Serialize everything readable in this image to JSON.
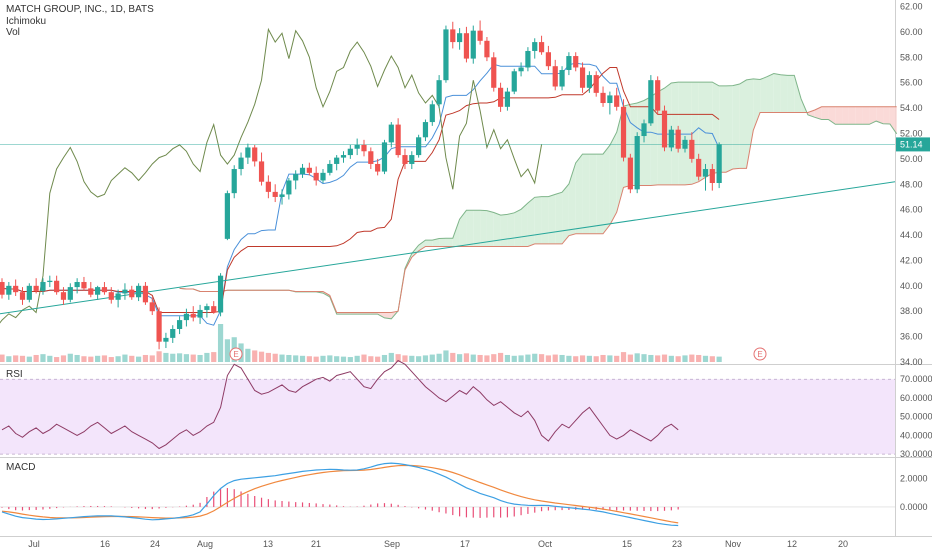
{
  "header": {
    "title": "MATCH GROUP, INC., 1D, BATS",
    "indicators": [
      "Ichimoku",
      "Vol"
    ]
  },
  "price_axis": {
    "ticks": [
      "62.00",
      "60.00",
      "58.00",
      "56.00",
      "54.00",
      "52.00",
      "50.00",
      "48.00",
      "46.00",
      "44.00",
      "42.00",
      "40.00",
      "38.00",
      "36.00",
      "34.00"
    ],
    "current_price_label": "51.14",
    "ylim": [
      34,
      62.2
    ]
  },
  "rsi": {
    "label": "RSI",
    "ticks": [
      "70.0000",
      "60.0000",
      "50.0000",
      "40.0000",
      "30.0000"
    ],
    "ylim": [
      29,
      76
    ],
    "band": [
      30,
      70
    ]
  },
  "macd": {
    "label": "MACD",
    "ticks": [
      "2.0000",
      "0.0000"
    ],
    "ylim": [
      -1.9,
      3.3
    ]
  },
  "x_axis": {
    "ticks": [
      "Jul",
      "16",
      "24",
      "Aug",
      "13",
      "21",
      "Sep",
      "17",
      "Oct",
      "15",
      "23",
      "Nov",
      "12",
      "20"
    ]
  },
  "earnings_markers": [
    "E",
    "E"
  ],
  "colors": {
    "up": "#26a69a",
    "down": "#ef5350",
    "cloud_bull": "#d4edd8",
    "cloud_bear": "#f9d4d1",
    "rsi_bg": "#f3e5fb",
    "price_line": "#26a69a",
    "tenkan": "#4a90d9",
    "kijun": "#c0392b",
    "chikou": "#6f8a4d",
    "rsi_line": "#8e3b65",
    "macd_line": "#3da0e3",
    "signal_line": "#f0883e",
    "histogram": "#e94e77"
  },
  "chart_data": [
    {
      "type": "candlestick",
      "title": "MATCH GROUP, INC., 1D, BATS",
      "ylim": [
        34,
        62.2
      ],
      "last_price": 51.14,
      "ohlc": [
        [
          40.3,
          40.6,
          39.0,
          39.3
        ],
        [
          39.3,
          40.3,
          38.9,
          40.0
        ],
        [
          40.0,
          40.5,
          39.2,
          39.5
        ],
        [
          39.5,
          39.9,
          38.5,
          38.9
        ],
        [
          38.9,
          40.2,
          38.7,
          40.0
        ],
        [
          40.0,
          40.6,
          39.4,
          39.6
        ],
        [
          39.6,
          40.6,
          39.3,
          40.3
        ],
        [
          40.3,
          40.8,
          39.9,
          40.4
        ],
        [
          40.4,
          40.8,
          39.3,
          39.5
        ],
        [
          39.5,
          39.9,
          38.5,
          38.9
        ],
        [
          38.9,
          40.2,
          38.7,
          39.9
        ],
        [
          39.9,
          40.6,
          39.4,
          40.3
        ],
        [
          40.3,
          40.7,
          39.6,
          39.8
        ],
        [
          39.8,
          40.3,
          39.1,
          39.3
        ],
        [
          39.3,
          40.0,
          38.9,
          39.9
        ],
        [
          39.9,
          40.3,
          39.3,
          39.5
        ],
        [
          39.5,
          39.9,
          38.6,
          38.9
        ],
        [
          38.9,
          39.7,
          38.3,
          39.4
        ],
        [
          39.4,
          40.2,
          38.9,
          39.7
        ],
        [
          39.7,
          40.0,
          38.9,
          39.1
        ],
        [
          39.1,
          40.2,
          38.8,
          40.0
        ],
        [
          40.0,
          40.3,
          38.5,
          38.7
        ],
        [
          38.7,
          39.1,
          37.7,
          38.0
        ],
        [
          38.0,
          38.3,
          35.0,
          35.6
        ],
        [
          35.6,
          36.3,
          35.1,
          35.9
        ],
        [
          35.9,
          36.9,
          35.5,
          36.6
        ],
        [
          36.6,
          37.6,
          36.2,
          37.3
        ],
        [
          37.3,
          38.2,
          36.8,
          37.8
        ],
        [
          37.8,
          38.4,
          37.2,
          37.5
        ],
        [
          37.5,
          38.5,
          37.0,
          38.1
        ],
        [
          38.1,
          38.6,
          37.5,
          38.4
        ],
        [
          38.4,
          38.8,
          37.8,
          37.9
        ],
        [
          37.9,
          41.0,
          37.6,
          40.8
        ],
        [
          43.7,
          47.5,
          43.6,
          47.3
        ],
        [
          47.3,
          49.5,
          46.9,
          49.2
        ],
        [
          49.2,
          50.5,
          48.7,
          50.1
        ],
        [
          50.1,
          51.2,
          49.6,
          50.9
        ],
        [
          50.9,
          51.1,
          49.4,
          49.8
        ],
        [
          49.8,
          50.5,
          47.9,
          48.2
        ],
        [
          48.2,
          48.7,
          46.9,
          47.4
        ],
        [
          47.4,
          48.0,
          46.6,
          47.0
        ],
        [
          47.0,
          47.6,
          46.4,
          47.2
        ],
        [
          47.2,
          48.5,
          46.8,
          48.3
        ],
        [
          48.3,
          49.1,
          47.6,
          48.8
        ],
        [
          48.8,
          49.6,
          48.5,
          49.3
        ],
        [
          49.3,
          49.7,
          48.7,
          48.9
        ],
        [
          48.9,
          49.4,
          47.9,
          48.3
        ],
        [
          48.3,
          49.2,
          48.1,
          48.9
        ],
        [
          48.9,
          49.9,
          48.7,
          49.6
        ],
        [
          49.6,
          50.3,
          49.1,
          50.1
        ],
        [
          50.1,
          50.6,
          49.7,
          50.3
        ],
        [
          50.3,
          51.1,
          50.0,
          50.8
        ],
        [
          50.8,
          51.6,
          50.3,
          51.1
        ],
        [
          51.1,
          51.5,
          50.2,
          50.6
        ],
        [
          50.6,
          50.9,
          49.2,
          49.6
        ],
        [
          49.6,
          50.0,
          48.7,
          49.0
        ],
        [
          49.0,
          51.5,
          48.8,
          51.3
        ],
        [
          51.3,
          52.9,
          50.9,
          52.7
        ],
        [
          52.7,
          53.2,
          50.1,
          50.3
        ],
        [
          50.3,
          50.8,
          49.2,
          49.6
        ],
        [
          49.6,
          50.6,
          49.2,
          50.3
        ],
        [
          50.3,
          51.9,
          50.1,
          51.7
        ],
        [
          51.7,
          53.1,
          51.4,
          52.9
        ],
        [
          52.9,
          54.6,
          52.6,
          54.3
        ],
        [
          54.3,
          56.6,
          54.0,
          56.2
        ],
        [
          56.2,
          60.5,
          56.0,
          60.2
        ],
        [
          60.2,
          60.8,
          58.7,
          59.2
        ],
        [
          59.2,
          60.3,
          58.6,
          59.9
        ],
        [
          59.9,
          60.4,
          57.6,
          57.9
        ],
        [
          57.9,
          60.5,
          57.5,
          60.1
        ],
        [
          60.1,
          60.9,
          59.0,
          59.3
        ],
        [
          59.3,
          59.6,
          57.7,
          58.0
        ],
        [
          58.0,
          58.4,
          55.3,
          55.6
        ],
        [
          55.6,
          56.0,
          53.7,
          54.1
        ],
        [
          54.1,
          55.6,
          53.8,
          55.3
        ],
        [
          55.3,
          57.1,
          55.1,
          56.9
        ],
        [
          56.9,
          57.6,
          56.5,
          57.2
        ],
        [
          57.2,
          58.8,
          56.9,
          58.5
        ],
        [
          58.5,
          59.5,
          57.9,
          59.2
        ],
        [
          59.2,
          59.7,
          58.2,
          58.4
        ],
        [
          58.4,
          58.9,
          57.0,
          57.3
        ],
        [
          57.3,
          57.8,
          55.4,
          55.7
        ],
        [
          55.7,
          57.3,
          55.4,
          57.0
        ],
        [
          57.0,
          58.4,
          56.6,
          58.1
        ],
        [
          58.1,
          58.4,
          56.9,
          57.2
        ],
        [
          57.2,
          57.6,
          55.2,
          55.6
        ],
        [
          55.6,
          56.9,
          55.2,
          56.6
        ],
        [
          56.6,
          56.9,
          54.9,
          55.2
        ],
        [
          55.2,
          55.7,
          54.1,
          54.4
        ],
        [
          54.4,
          55.3,
          53.5,
          55.0
        ],
        [
          55.0,
          55.6,
          53.8,
          54.1
        ],
        [
          54.1,
          54.7,
          49.8,
          50.1
        ],
        [
          50.1,
          50.4,
          47.3,
          47.6
        ],
        [
          47.6,
          52.1,
          47.3,
          51.8
        ],
        [
          51.8,
          53.1,
          51.3,
          52.8
        ],
        [
          52.8,
          56.6,
          52.6,
          56.2
        ],
        [
          56.2,
          56.5,
          53.5,
          53.8
        ],
        [
          53.8,
          54.2,
          50.6,
          50.9
        ],
        [
          50.9,
          52.6,
          50.6,
          52.3
        ],
        [
          52.3,
          52.6,
          50.5,
          50.8
        ],
        [
          50.8,
          51.8,
          50.5,
          51.5
        ],
        [
          51.5,
          52.1,
          49.7,
          50.0
        ],
        [
          50.0,
          50.4,
          48.3,
          48.6
        ],
        [
          48.6,
          49.6,
          47.5,
          49.2
        ],
        [
          49.2,
          49.6,
          47.5,
          48.1
        ],
        [
          48.1,
          51.3,
          47.7,
          51.14
        ]
      ],
      "volume": [
        18,
        14,
        16,
        15,
        13,
        17,
        19,
        15,
        12,
        16,
        20,
        17,
        14,
        13,
        15,
        16,
        12,
        14,
        18,
        15,
        13,
        17,
        16,
        26,
        22,
        20,
        21,
        19,
        18,
        17,
        22,
        24,
        92,
        55,
        60,
        45,
        32,
        28,
        25,
        22,
        20,
        18,
        17,
        16,
        15,
        14,
        13,
        15,
        16,
        14,
        13,
        12,
        15,
        18,
        14,
        13,
        17,
        22,
        19,
        16,
        15,
        14,
        16,
        18,
        20,
        28,
        22,
        19,
        21,
        18,
        17,
        16,
        19,
        22,
        17,
        15,
        16,
        18,
        20,
        19,
        16,
        18,
        17,
        15,
        14,
        16,
        15,
        14,
        17,
        16,
        15,
        24,
        18,
        21,
        19,
        17,
        16,
        18,
        15,
        14,
        16,
        18,
        17,
        15,
        14,
        13
      ]
    },
    {
      "type": "line",
      "title": "RSI",
      "ylim": [
        29,
        76
      ],
      "band": [
        30,
        70
      ],
      "values": [
        43,
        45,
        41,
        39,
        42,
        44,
        41,
        43,
        46,
        44,
        42,
        40,
        42,
        45,
        47,
        44,
        41,
        43,
        45,
        42,
        40,
        38,
        36,
        33,
        35,
        38,
        41,
        43,
        40,
        42,
        45,
        47,
        55,
        72,
        78,
        76,
        70,
        64,
        62,
        63,
        65,
        67,
        64,
        63,
        66,
        68,
        70,
        71,
        69,
        72,
        73,
        74,
        70,
        66,
        65,
        70,
        74,
        76,
        80,
        78,
        74,
        70,
        66,
        63,
        60,
        58,
        61,
        64,
        62,
        66,
        63,
        59,
        56,
        58,
        55,
        52,
        50,
        53,
        48,
        40,
        37,
        42,
        46,
        44,
        48,
        52,
        55,
        50,
        45,
        40,
        38,
        40,
        43,
        41,
        39,
        37,
        40,
        44,
        46,
        43
      ]
    },
    {
      "type": "line",
      "title": "MACD",
      "ylim": [
        -1.9,
        3.3
      ],
      "series": [
        {
          "values": [
            -0.35,
            -0.5,
            -0.65,
            -0.75,
            -0.8,
            -0.85,
            -0.88,
            -0.87,
            -0.84,
            -0.8,
            -0.76,
            -0.72,
            -0.68,
            -0.65,
            -0.63,
            -0.62,
            -0.63,
            -0.66,
            -0.7,
            -0.75,
            -0.8,
            -0.86,
            -0.9,
            -0.88,
            -0.84,
            -0.8,
            -0.74,
            -0.66,
            -0.55,
            -0.35,
            0.2,
            0.8,
            1.3,
            1.65,
            1.85,
            1.95,
            2.0,
            2.05,
            2.1,
            2.15,
            2.2,
            2.28,
            2.35,
            2.42,
            2.5,
            2.55,
            2.6,
            2.62,
            2.65,
            2.63,
            2.6,
            2.58,
            2.6,
            2.68,
            2.8,
            2.95,
            3.05,
            3.08,
            3.05,
            2.98,
            2.88,
            2.78,
            2.65,
            2.5,
            2.3,
            2.1,
            1.85,
            1.6,
            1.35,
            1.15,
            0.95,
            0.8,
            0.65,
            0.45,
            0.3,
            0.2,
            0.15,
            0.12,
            0.1,
            0.12,
            0.1,
            0.05,
            0.0,
            -0.05,
            -0.1,
            -0.15,
            -0.2,
            -0.28,
            -0.35,
            -0.45,
            -0.55,
            -0.65,
            -0.75,
            -0.85,
            -0.95,
            -1.05,
            -1.15,
            -1.22,
            -1.28,
            -1.3
          ]
        },
        {
          "values": [
            -0.3,
            -0.35,
            -0.42,
            -0.5,
            -0.58,
            -0.64,
            -0.7,
            -0.74,
            -0.76,
            -0.77,
            -0.77,
            -0.76,
            -0.74,
            -0.72,
            -0.7,
            -0.68,
            -0.67,
            -0.66,
            -0.67,
            -0.68,
            -0.7,
            -0.72,
            -0.75,
            -0.77,
            -0.78,
            -0.78,
            -0.77,
            -0.75,
            -0.71,
            -0.64,
            -0.5,
            -0.28,
            0.02,
            0.32,
            0.6,
            0.86,
            1.08,
            1.28,
            1.45,
            1.6,
            1.74,
            1.86,
            1.97,
            2.08,
            2.18,
            2.27,
            2.35,
            2.42,
            2.48,
            2.52,
            2.55,
            2.56,
            2.57,
            2.59,
            2.63,
            2.7,
            2.78,
            2.85,
            2.9,
            2.92,
            2.91,
            2.88,
            2.83,
            2.76,
            2.67,
            2.56,
            2.42,
            2.26,
            2.08,
            1.9,
            1.72,
            1.55,
            1.38,
            1.2,
            1.03,
            0.87,
            0.73,
            0.61,
            0.5,
            0.42,
            0.35,
            0.28,
            0.22,
            0.16,
            0.1,
            0.04,
            -0.02,
            -0.08,
            -0.15,
            -0.23,
            -0.31,
            -0.4,
            -0.49,
            -0.58,
            -0.67,
            -0.76,
            -0.86,
            -0.95,
            -1.04,
            -1.12
          ]
        },
        {
          "values": [
            -0.05,
            -0.15,
            -0.23,
            -0.25,
            -0.22,
            -0.21,
            -0.18,
            -0.13,
            -0.08,
            -0.03,
            0.01,
            0.04,
            0.06,
            0.07,
            0.07,
            0.06,
            0.04,
            0.0,
            -0.03,
            -0.07,
            -0.1,
            -0.14,
            -0.15,
            -0.11,
            -0.06,
            -0.02,
            0.03,
            0.09,
            0.16,
            0.29,
            0.7,
            1.08,
            1.28,
            1.33,
            1.25,
            1.09,
            0.92,
            0.77,
            0.65,
            0.55,
            0.46,
            0.42,
            0.38,
            0.34,
            0.32,
            0.28,
            0.25,
            0.2,
            0.17,
            0.11,
            0.05,
            0.02,
            0.03,
            0.09,
            0.17,
            0.25,
            0.27,
            0.23,
            0.15,
            0.06,
            -0.03,
            -0.1,
            -0.18,
            -0.26,
            -0.37,
            -0.46,
            -0.57,
            -0.66,
            -0.73,
            -0.75,
            -0.77,
            -0.75,
            -0.73,
            -0.75,
            -0.73,
            -0.67,
            -0.58,
            -0.49,
            -0.4,
            -0.3,
            -0.25,
            -0.23,
            -0.22,
            -0.21,
            -0.2,
            -0.19,
            -0.18,
            -0.2,
            -0.2,
            -0.22,
            -0.24,
            -0.25,
            -0.26,
            -0.27,
            -0.28,
            -0.29,
            -0.29,
            -0.27,
            -0.24,
            -0.18
          ]
        }
      ]
    }
  ]
}
